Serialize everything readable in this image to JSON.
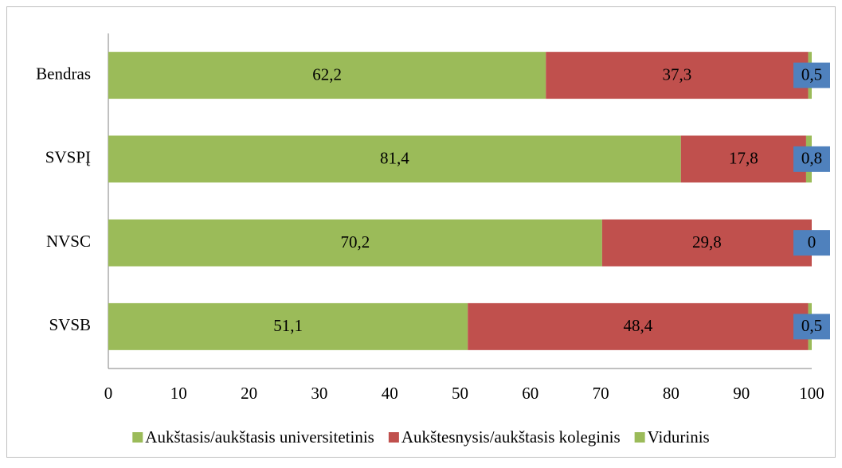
{
  "chart_data": {
    "type": "stacked-bar-horizontal",
    "categories": [
      "Bendras",
      "SVSPĮ",
      "NVSC",
      "SVSB"
    ],
    "series": [
      {
        "name": "Aukštasis/aukštasis universitetinis",
        "color": "#9bbb59",
        "values": [
          62.2,
          81.4,
          70.2,
          51.1
        ],
        "value_labels": [
          "62,2",
          "81,4",
          "70,2",
          "51,1"
        ]
      },
      {
        "name": "Aukštesnysis/aukštasis koleginis",
        "color": "#c0504d",
        "values": [
          37.3,
          17.8,
          29.8,
          48.4
        ],
        "value_labels": [
          "37,3",
          "17,8",
          "29,8",
          "48,4"
        ]
      },
      {
        "name": "Vidurinis",
        "color": "#9bbb59",
        "values": [
          0.5,
          0.8,
          0,
          0.5
        ],
        "value_labels": [
          "0,5",
          "0,8",
          "0",
          "0,5"
        ]
      }
    ],
    "xlim": [
      0,
      100
    ],
    "xticks": [
      0,
      10,
      20,
      30,
      40,
      50,
      60,
      70,
      80,
      90,
      100
    ],
    "legend": "bottom"
  }
}
